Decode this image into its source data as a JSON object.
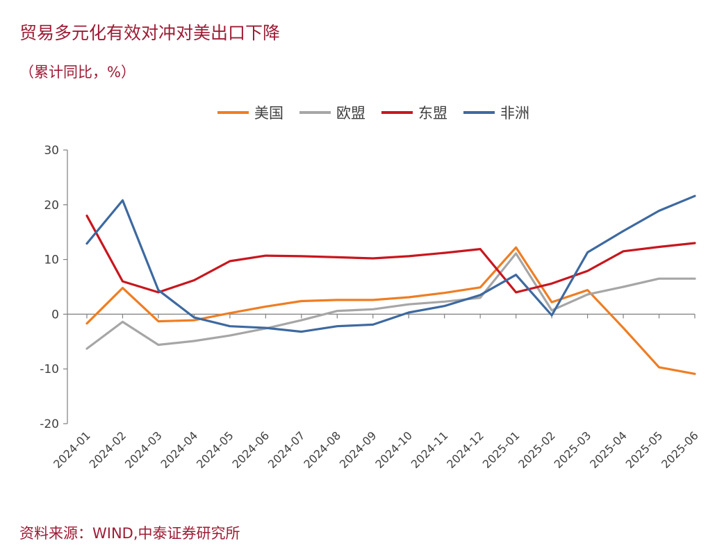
{
  "page": {
    "title": "贸易多元化有效对冲对美出口下降",
    "subtitle": "（累计同比，%）",
    "source": "资料来源：WIND,中泰证券研究所"
  },
  "chart_data": {
    "type": "line",
    "title": "贸易多元化有效对冲对美出口下降",
    "subtitle": "（累计同比，%）",
    "xlabel": "",
    "ylabel": "",
    "ylim": [
      -20,
      30
    ],
    "yticks": [
      30,
      20,
      10,
      0,
      -10,
      -20
    ],
    "grid": false,
    "legend_position": "top-center",
    "categories": [
      "2024-01",
      "2024-02",
      "2024-03",
      "2024-04",
      "2024-05",
      "2024-06",
      "2024-07",
      "2024-08",
      "2024-09",
      "2024-10",
      "2024-11",
      "2024-12",
      "2025-01",
      "2025-02",
      "2025-03",
      "2025-04",
      "2025-05",
      "2025-06"
    ],
    "series": [
      {
        "name": "美国",
        "color": "#ef7d22",
        "values": [
          -1.7,
          4.8,
          -1.3,
          -1.1,
          0.2,
          1.4,
          2.4,
          2.6,
          2.6,
          3.1,
          3.9,
          4.9,
          12.2,
          2.2,
          4.4,
          -2.5,
          -9.7,
          -10.9
        ]
      },
      {
        "name": "欧盟",
        "color": "#a6a6a6",
        "values": [
          -6.3,
          -1.4,
          -5.6,
          -4.9,
          -3.9,
          -2.6,
          -1.1,
          0.6,
          0.9,
          1.8,
          2.3,
          3.0,
          11.1,
          0.7,
          3.6,
          5.0,
          6.5,
          6.5
        ]
      },
      {
        "name": "东盟",
        "color": "#c8161d",
        "values": [
          18.0,
          6.0,
          4.0,
          6.2,
          9.7,
          10.7,
          10.6,
          10.4,
          10.2,
          10.6,
          11.2,
          11.9,
          4.0,
          5.6,
          7.9,
          11.5,
          12.3,
          13.0
        ]
      },
      {
        "name": "非洲",
        "color": "#3d69a0",
        "values": [
          12.9,
          20.8,
          4.4,
          -0.6,
          -2.2,
          -2.5,
          -3.2,
          -2.2,
          -1.9,
          0.3,
          1.5,
          3.5,
          7.2,
          -0.2,
          11.3,
          15.2,
          18.9,
          21.6
        ]
      }
    ]
  }
}
